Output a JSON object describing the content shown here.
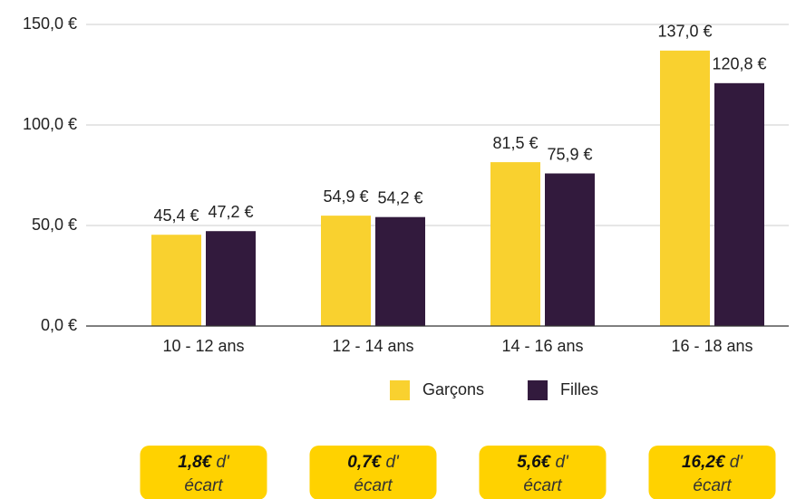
{
  "chart_data": {
    "type": "bar",
    "categories": [
      "10 - 12 ans",
      "12 - 14 ans",
      "14 - 16 ans",
      "16 - 18 ans"
    ],
    "series": [
      {
        "name": "Garçons",
        "color": "#f9d12f",
        "values": [
          45.4,
          54.9,
          81.5,
          137.0
        ],
        "value_labels": [
          "45,4 €",
          "54,9 €",
          "81,5 €",
          "137,0 €"
        ]
      },
      {
        "name": "Filles",
        "color": "#321a3d",
        "values": [
          47.2,
          54.2,
          75.9,
          120.8
        ],
        "value_labels": [
          "47,2 €",
          "54,2 €",
          "75,9 €",
          "120,8 €"
        ]
      }
    ],
    "ylim": [
      0,
      150
    ],
    "yticks": [
      {
        "value": 0,
        "label": "0,0 €"
      },
      {
        "value": 50,
        "label": "50,0 €"
      },
      {
        "value": 100,
        "label": "100,0 €"
      },
      {
        "value": 150,
        "label": "150,0 €"
      }
    ],
    "grid": true,
    "legend": "bottom",
    "annotations": [
      {
        "bold": "1,8€",
        "text": "d' écart"
      },
      {
        "bold": "0,7€",
        "text": "d' écart"
      },
      {
        "bold": "5,6€",
        "text": "d' écart"
      },
      {
        "bold": "16,2€",
        "text": "d' écart"
      }
    ]
  }
}
